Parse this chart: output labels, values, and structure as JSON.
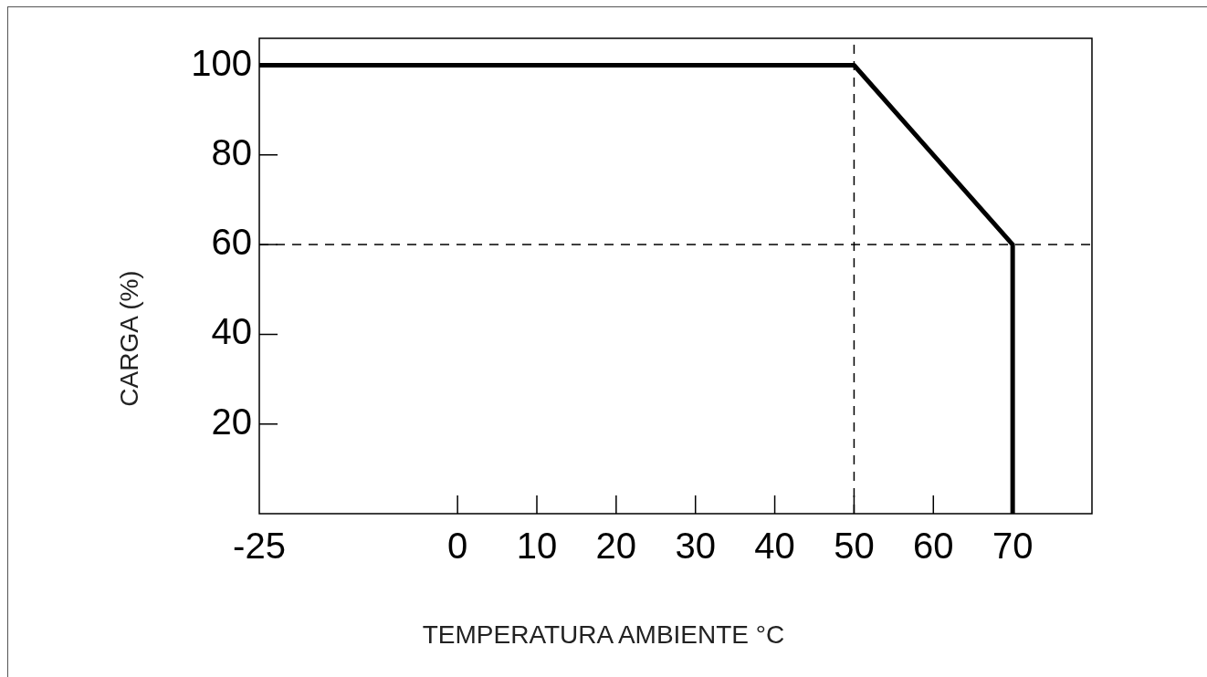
{
  "chart_data": {
    "type": "line",
    "xlabel": "TEMPERATURA AMBIENTE °C",
    "ylabel": "CARGA (%)",
    "marker": "none",
    "xlim": [
      -25,
      80
    ],
    "ylim": [
      0,
      106
    ],
    "xticks": [
      -25,
      0,
      10,
      20,
      30,
      40,
      50,
      60,
      70
    ],
    "yticks": [
      20,
      40,
      60,
      80,
      100
    ],
    "series": [
      {
        "color": "#000000",
        "line_style": "solid",
        "x": [
          -25,
          50,
          70,
          70
        ],
        "values": [
          100,
          100,
          60,
          0
        ]
      }
    ],
    "ref_lines": [
      {
        "axis": "x",
        "value": 50,
        "color": "#000000",
        "line_style": "dashed"
      },
      {
        "axis": "y",
        "value": 60,
        "color": "#000000",
        "line_style": "dashed"
      }
    ]
  }
}
